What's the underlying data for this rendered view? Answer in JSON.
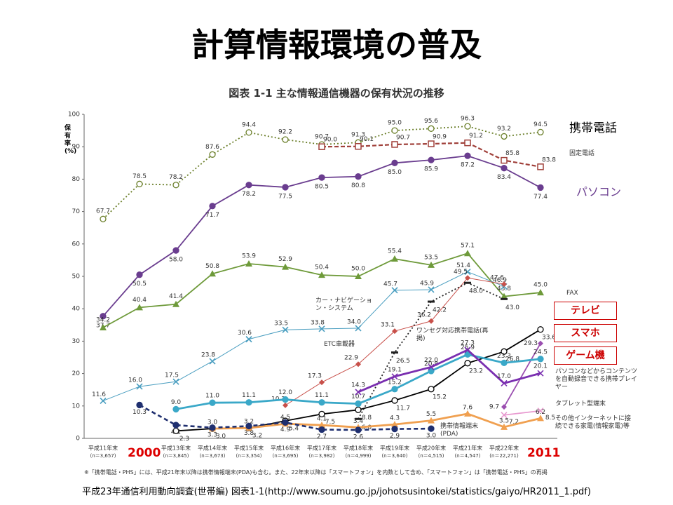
{
  "page_title": "計算情報環境の普及",
  "source": "平成23年通信利用動向調査(世帯編) 図表1-1(http://www.soumu.go.jp/johotsusintokei/statistics/gaiyo/HR2011_1.pdf)",
  "chart_data": {
    "type": "line",
    "title": "図表 1-1 主な情報通信機器の保有状況の推移",
    "y_label": "保有率(%)",
    "footnote": "※「携帯電話・PHS」には、平成21年末以降は携帯情報端末(PDA)も含む。また、22年末以降は「スマートフォン」を内数として含め、「スマートフォン」は「携帯電話・PHS」の再掲",
    "year_labels": [
      "2000",
      "2011"
    ],
    "categories": [
      "平成11年末",
      null,
      "平成13年末",
      "平成14年末",
      "平成15年末",
      "平成16年末",
      "平成17年末",
      "平成18年末",
      "平成19年末",
      "平成20年末",
      "平成21年末",
      "平成22年末",
      null
    ],
    "n_labels": [
      "(n＝3,657)",
      null,
      "(n＝3,845)",
      "(n＝3,673)",
      "(n＝3,354)",
      "(n＝3,695)",
      "(n＝3,982)",
      "(n＝4,999)",
      "(n＝3,640)",
      "(n＝4,515)",
      "(n＝4,547)",
      "(n＝22,271)",
      null
    ],
    "ylim": [
      0,
      100
    ],
    "yticks": [
      0,
      10,
      20,
      30,
      40,
      50,
      60,
      70,
      80,
      90,
      100
    ],
    "series": [
      {
        "name": "携帯電話",
        "color": "#6b7f2a",
        "style": "dotted",
        "marker": "ocircle",
        "values": [
          67.7,
          78.5,
          78.2,
          87.6,
          94.4,
          92.2,
          90.7,
          91.3,
          95.0,
          95.6,
          96.3,
          93.2,
          94.5
        ],
        "value_labels": [
          "67.7",
          "78.5",
          "78.2",
          "87.6",
          "94.4",
          "92.2",
          "90.7",
          "91.3",
          "95.0",
          "95.6",
          "96.3",
          "93.2",
          "94.5"
        ]
      },
      {
        "name": "固定電話",
        "color": "#a0403a",
        "style": "dashed",
        "marker": "osquare",
        "values": [
          null,
          null,
          null,
          null,
          null,
          null,
          90.0,
          90.1,
          90.7,
          90.9,
          91.2,
          85.8,
          83.8
        ],
        "value_labels": [
          null,
          null,
          null,
          null,
          null,
          null,
          "90.0",
          "90.1",
          "90.7",
          "90.9",
          "91.2",
          "85.8",
          "83.8"
        ]
      },
      {
        "name": "パソコン",
        "color": "#6a3d8f",
        "style": "solid",
        "marker": "circle",
        "values": [
          37.7,
          50.5,
          58.0,
          71.7,
          78.2,
          77.5,
          80.5,
          80.8,
          85.0,
          85.9,
          87.2,
          83.4,
          77.4
        ],
        "value_labels": [
          "37.7",
          "50.5",
          "58.0",
          "71.7",
          "78.2",
          "77.5",
          "80.5",
          "80.8",
          "85.0",
          "85.9",
          "87.2",
          "83.4",
          "77.4"
        ]
      },
      {
        "name": "FAX",
        "color": "#6e9a3a",
        "style": "solid",
        "marker": "triangle",
        "values": [
          34.2,
          40.4,
          41.4,
          50.8,
          53.9,
          52.9,
          50.4,
          50.0,
          55.4,
          53.5,
          57.1,
          43.8,
          45.0
        ],
        "value_labels": [
          "34.2",
          "40.4",
          "41.4",
          "50.8",
          "53.9",
          "52.9",
          "50.4",
          "50.0",
          "55.4",
          "53.5",
          "57.1",
          "43.8",
          "45.0"
        ]
      },
      {
        "name": "カー・ナビゲーション・システム",
        "color": "#4a9ec0",
        "style": "thin",
        "marker": "x",
        "values": [
          11.6,
          16.0,
          17.5,
          23.8,
          30.6,
          33.5,
          33.8,
          34.0,
          45.7,
          45.9,
          51.4,
          46.9,
          null
        ],
        "value_labels": [
          "11.6",
          "16.0",
          "17.5",
          "23.8",
          "30.6",
          "33.5",
          "33.8",
          "34.0",
          "45.7",
          "45.9",
          "51.4",
          "46.9",
          null
        ]
      },
      {
        "name": "ETC車載器",
        "color": "#c8504a",
        "style": "thin",
        "marker": "diamond",
        "values": [
          null,
          null,
          null,
          null,
          null,
          10.2,
          17.3,
          22.9,
          33.1,
          36.2,
          49.5,
          47.6,
          null
        ],
        "value_labels": [
          null,
          null,
          null,
          null,
          null,
          "10.2",
          "17.3",
          "22.9",
          "33.1",
          "36.2",
          "49.5",
          "47.6",
          null
        ]
      },
      {
        "name": "ワンセグ対応携帯電話(再掲)",
        "color": "#222222",
        "style": "dotted",
        "marker": "dash",
        "values": [
          null,
          null,
          null,
          null,
          null,
          null,
          null,
          6.0,
          26.5,
          42.2,
          48.0,
          43.0,
          null
        ],
        "value_labels": [
          null,
          null,
          null,
          null,
          null,
          null,
          null,
          "6.0",
          "26.5",
          "42.2",
          "48.0",
          "43.0",
          null
        ]
      },
      {
        "name": "テレビ",
        "color": "#000000",
        "style": "solid",
        "marker": "ocircle",
        "box": true,
        "values": [
          null,
          null,
          2.3,
          3.0,
          3.2,
          5.4,
          7.5,
          8.8,
          11.7,
          15.2,
          23.2,
          26.8,
          33.6
        ],
        "value_labels": [
          null,
          null,
          "2.3",
          "3.0",
          "3.2",
          "5.4",
          "7.5",
          "8.8",
          "11.7",
          "15.2",
          "23.2",
          "26.8",
          "33.6"
        ]
      },
      {
        "name": "スマホ",
        "color": "#9b4fb0",
        "style": "solid",
        "marker": "diamond",
        "box": true,
        "values": [
          null,
          null,
          null,
          null,
          null,
          null,
          null,
          null,
          null,
          null,
          null,
          9.7,
          29.3
        ],
        "value_labels": [
          null,
          null,
          null,
          null,
          null,
          null,
          null,
          null,
          null,
          null,
          null,
          "9.7",
          "29.3"
        ]
      },
      {
        "name": "ゲーム機",
        "color": "#3aa8c8",
        "style": "bold",
        "marker": "circle",
        "box": true,
        "values": [
          null,
          null,
          9.0,
          11.0,
          11.1,
          12.0,
          11.1,
          10.7,
          15.2,
          20.8,
          25.9,
          23.3,
          24.5
        ],
        "value_labels": [
          null,
          null,
          "9.0",
          "11.0",
          "11.1",
          "12.0",
          "11.1",
          "10.7",
          "15.2",
          "20.8",
          "25.9",
          "23.3",
          "24.5"
        ]
      },
      {
        "name": "パソコンなどからコンテンツを自動録音できる携帯プレイヤー",
        "color": "#7a2fb0",
        "style": "bold",
        "marker": "x",
        "values": [
          null,
          null,
          null,
          null,
          null,
          null,
          null,
          14.3,
          19.1,
          22.0,
          27.3,
          17.0,
          20.1
        ],
        "value_labels": [
          null,
          null,
          null,
          null,
          null,
          null,
          null,
          "14.3",
          "19.1",
          "22.0",
          "27.3",
          "17.0",
          "20.1"
        ]
      },
      {
        "name": "タブレット型端末",
        "color": "#e89ad0",
        "style": "solid",
        "marker": "x",
        "values": [
          null,
          null,
          null,
          null,
          null,
          null,
          null,
          null,
          null,
          null,
          null,
          7.2,
          8.5
        ],
        "value_labels": [
          null,
          null,
          null,
          null,
          null,
          null,
          null,
          null,
          null,
          null,
          null,
          "7.2",
          "8.5"
        ]
      },
      {
        "name": "その他インターネットに接続できる家電(情報家電)等",
        "color": "#f0a050",
        "style": "bold",
        "marker": "triangle",
        "values": [
          null,
          null,
          null,
          3.0,
          3.2,
          4.5,
          4.1,
          3.4,
          4.3,
          5.5,
          7.6,
          3.5,
          6.2
        ],
        "value_labels": [
          null,
          null,
          null,
          "3.0",
          "3.2",
          "4.5",
          "4.1",
          "3.4",
          "4.3",
          "5.5",
          "7.6",
          "3.5",
          "6.2"
        ]
      },
      {
        "name": "携帯情報端末(PDA)",
        "color": "#1f2f6f",
        "style": "dashbold",
        "marker": "circle",
        "values": [
          null,
          10.3,
          4.1,
          3.3,
          3.8,
          4.9,
          2.7,
          2.6,
          2.9,
          3.0,
          null,
          null,
          null
        ],
        "value_labels": [
          null,
          "10.3",
          "4.1",
          "3.3",
          "3.8",
          "4.9",
          "2.7",
          "2.6",
          "2.9",
          "3.0",
          null,
          null,
          null
        ]
      }
    ]
  }
}
